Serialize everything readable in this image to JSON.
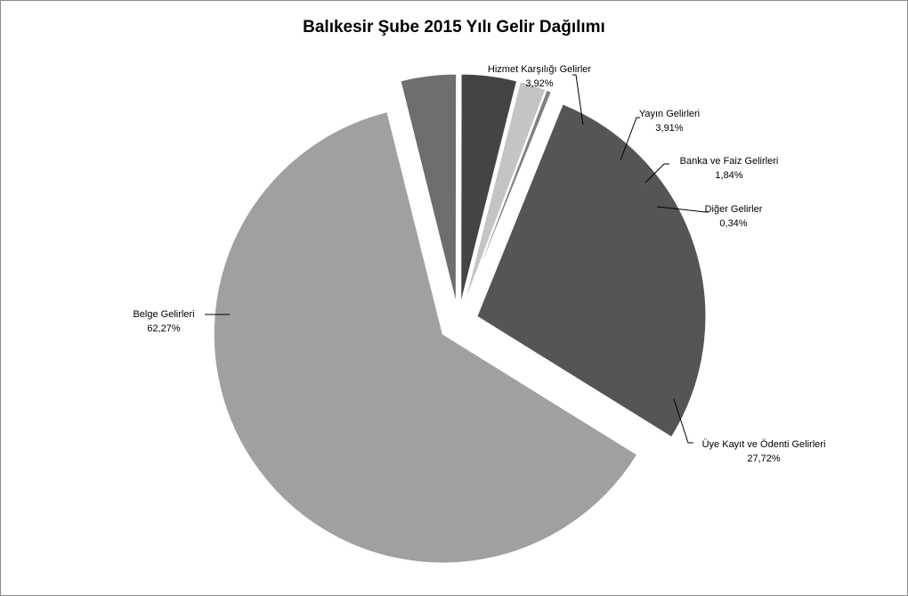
{
  "chart_data": {
    "type": "pie",
    "title": "Balıkesir Şube 2015 Yılı Gelir Dağılımı",
    "slices": [
      {
        "name": "Üye Kayıt ve Ödenti Gelirleri",
        "value": 27.72,
        "label": "27,72%",
        "color": "#555555"
      },
      {
        "name": "Belge Gelirleri",
        "value": 62.27,
        "label": "62,27%",
        "color": "#a0a0a0"
      },
      {
        "name": "Hizmet Karşılığı Gelirler",
        "value": 3.92,
        "label": "3,92%",
        "color": "#6e6e6e"
      },
      {
        "name": "Yayın Gelirleri",
        "value": 3.91,
        "label": "3,91%",
        "color": "#444444"
      },
      {
        "name": "Banka ve Faiz Gelirleri",
        "value": 1.84,
        "label": "1,84%",
        "color": "#c4c4c4"
      },
      {
        "name": "Diğer Gelirler",
        "value": 0.34,
        "label": "0,34%",
        "color": "#808080"
      }
    ],
    "legend": "none"
  }
}
